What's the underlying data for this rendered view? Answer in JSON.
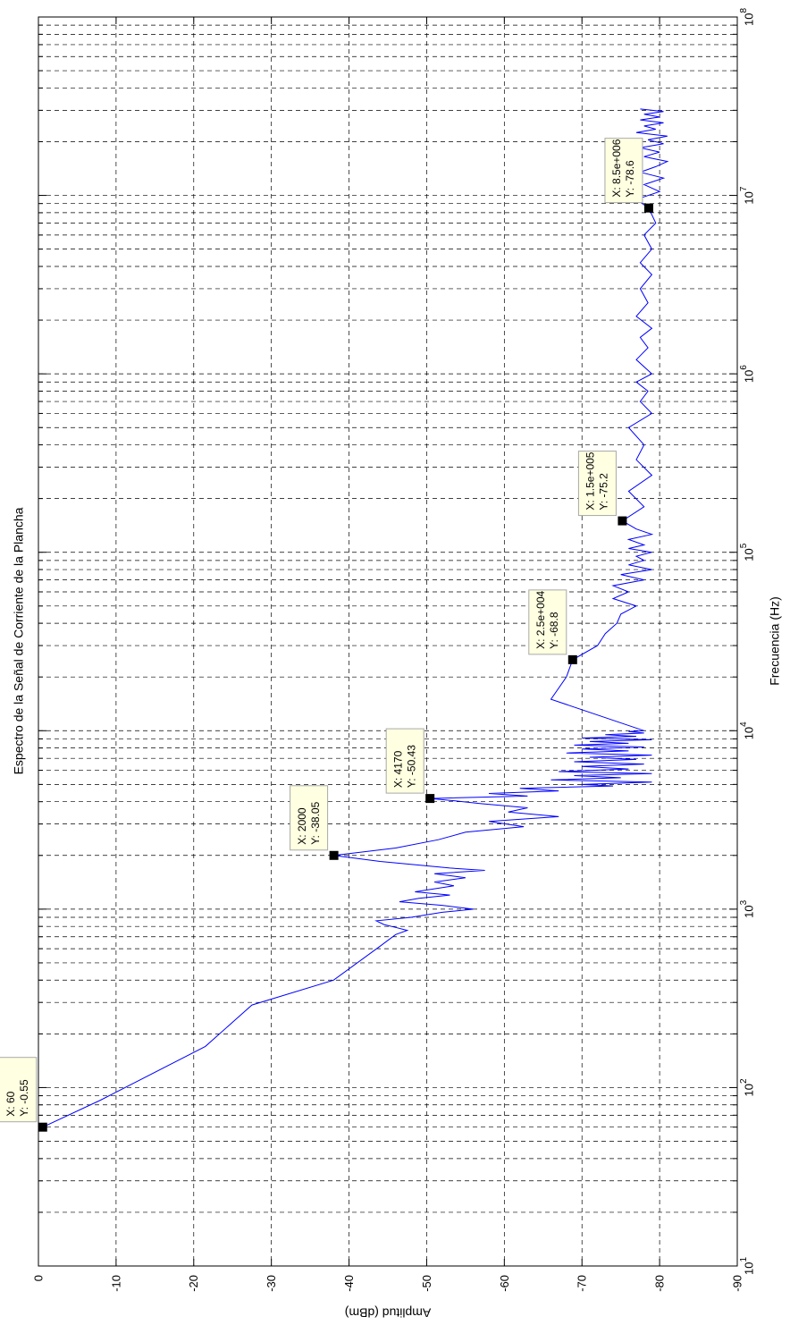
{
  "chart_data": {
    "type": "line",
    "orientation": "rotated-90-ccw",
    "title": "Espectro de la Señal de Corriente de la Plancha",
    "xlabel": "Frecuencia (Hz)",
    "ylabel": "Amplitud (dBm)",
    "xscale": "log",
    "xlim": [
      10,
      100000000
    ],
    "ylim": [
      -90,
      0
    ],
    "grid": true,
    "x_ticks": [
      {
        "base": "10",
        "exp": "1"
      },
      {
        "base": "10",
        "exp": "2"
      },
      {
        "base": "10",
        "exp": "3"
      },
      {
        "base": "10",
        "exp": "4"
      },
      {
        "base": "10",
        "exp": "5"
      },
      {
        "base": "10",
        "exp": "6"
      },
      {
        "base": "10",
        "exp": "7"
      },
      {
        "base": "10",
        "exp": "8"
      }
    ],
    "y_ticks": [
      "0",
      "-10",
      "-20",
      "-30",
      "-40",
      "-50",
      "-60",
      "-70",
      "-80",
      "-90"
    ],
    "series": [
      {
        "color": "#0000ff",
        "x": [
          60,
          85,
          170,
          290,
          400,
          620,
          720,
          760,
          790,
          820,
          860,
          900,
          960,
          1000,
          1050,
          1100,
          1150,
          1200,
          1250,
          1350,
          1420,
          1500,
          1580,
          1650,
          1700,
          1850,
          2000,
          2200,
          2450,
          2700,
          2900,
          3100,
          3300,
          3500,
          3700,
          3900,
          4050,
          4170,
          4300,
          4450,
          4600,
          4750,
          4900,
          5000,
          5150,
          5300,
          5450,
          5600,
          5750,
          5900,
          6100,
          6300,
          6500,
          6700,
          6900,
          7100,
          7300,
          7500,
          7700,
          7900,
          8100,
          8300,
          8500,
          8700,
          8900,
          9100,
          9300,
          9500,
          9700,
          9900,
          10000,
          15000,
          20000,
          25000,
          30000,
          35000,
          40000,
          45000,
          50000,
          55000,
          60000,
          65000,
          70000,
          75000,
          80000,
          85000,
          90000,
          95000,
          100000,
          105000,
          110000,
          118000,
          126000,
          135000,
          150000,
          180000,
          220000,
          270000,
          330000,
          400000,
          500000,
          600000,
          700000,
          800000,
          900000,
          1000000,
          1200000,
          1400000,
          1600000,
          1800000,
          2100000,
          2500000,
          3000000,
          3600000,
          4200000,
          5000000,
          6000000,
          7000000,
          8500000,
          9500000,
          10500000,
          11500000,
          12500000,
          13500000,
          14500000,
          15500000,
          16500000,
          17500000,
          18500000,
          19500000,
          20500000,
          21500000,
          22500000,
          23500000,
          24500000,
          25500000,
          26500000,
          27500000,
          28500000,
          29500000,
          30500000
        ],
        "y": [
          -0.55,
          -8,
          -21.5,
          -27.5,
          -38,
          -44,
          -46,
          -47.5,
          -46,
          -44.5,
          -43.5,
          -48,
          -52,
          -56,
          -52,
          -46.5,
          -49,
          -53,
          -48.5,
          -53.5,
          -51,
          -55,
          -51,
          -57.5,
          -53,
          -44,
          -38.05,
          -46,
          -51.5,
          -55,
          -62.5,
          -58,
          -67,
          -60.5,
          -63,
          -57,
          -53.5,
          -50.43,
          -63,
          -58,
          -67,
          -62,
          -74,
          -70,
          -79,
          -66,
          -75,
          -69,
          -79,
          -67,
          -76,
          -70,
          -78,
          -69,
          -77,
          -71,
          -79,
          -68,
          -76,
          -70,
          -78,
          -69,
          -76,
          -71,
          -79,
          -70,
          -77,
          -73,
          -78,
          -76,
          -78,
          -66,
          -68,
          -68.8,
          -72,
          -73,
          -74.5,
          -75,
          -77,
          -74,
          -76,
          -74,
          -78,
          -75,
          -79,
          -76,
          -78,
          -77,
          -79,
          -76,
          -78,
          -76,
          -79,
          -77,
          -75.2,
          -78,
          -76,
          -79,
          -77,
          -78,
          -76,
          -79,
          -77.5,
          -78.5,
          -77,
          -79,
          -77,
          -78.5,
          -77.5,
          -79,
          -77,
          -78.5,
          -77.5,
          -79,
          -77.5,
          -79,
          -78,
          -79.5,
          -78.6,
          -77,
          -80,
          -78,
          -80.5,
          -77.5,
          -79.5,
          -81,
          -78,
          -80,
          -77.5,
          -80.5,
          -78.5,
          -81,
          -77,
          -79.5,
          -78,
          -80.5,
          -77.5,
          -80,
          -78,
          -80.5,
          -77.5
        ]
      }
    ],
    "datatips": [
      {
        "x": 60,
        "y": -0.55,
        "line1": "X: 60",
        "line2": "Y: -0.55"
      },
      {
        "x": 2000,
        "y": -38.05,
        "line1": "X: 2000",
        "line2": "Y: -38.05"
      },
      {
        "x": 4170,
        "y": -50.43,
        "line1": "X: 4170",
        "line2": "Y: -50.43"
      },
      {
        "x": 25000,
        "y": -68.8,
        "line1": "X: 2.5e+004",
        "line2": "Y: -68.8"
      },
      {
        "x": 150000,
        "y": -75.2,
        "line1": "X: 1.5e+005",
        "line2": "Y: -75.2"
      },
      {
        "x": 8500000,
        "y": -78.6,
        "line1": "X: 8.5e+006",
        "line2": "Y: -78.6"
      }
    ]
  }
}
